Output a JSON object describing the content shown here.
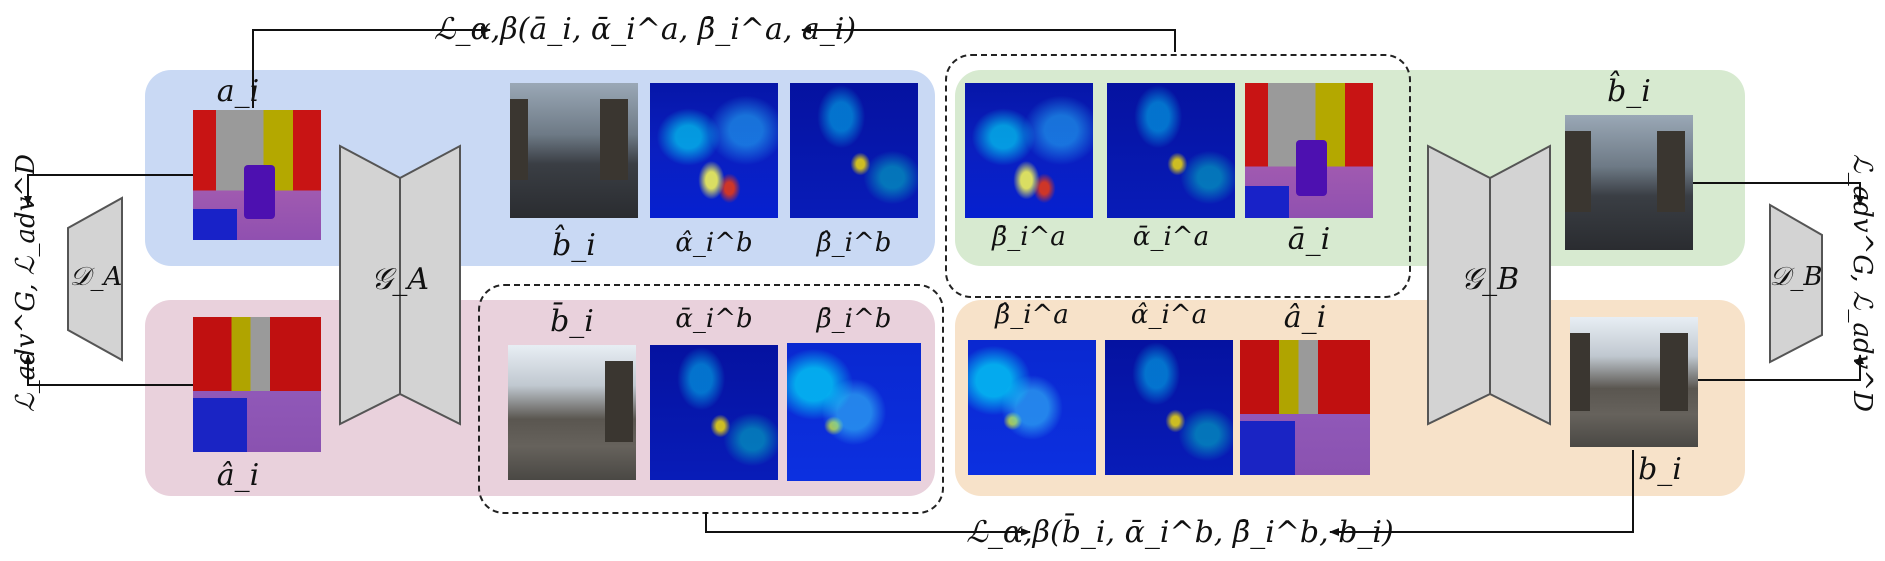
{
  "generators": {
    "ga": "𝒢_A",
    "gb": "𝒢_B"
  },
  "discriminators": {
    "da": "𝒟_A",
    "db": "𝒟_B"
  },
  "labels": {
    "a_i": "a_i",
    "a_hat_i": "â_i",
    "b_hat_i_top": "b̂_i",
    "alpha_hat_b": "α̂_i^b",
    "beta_hat_b": "β̂_i^b",
    "beta_bar_a": "β̄_i^a",
    "alpha_bar_a": "ᾱ_i^a",
    "a_bar_i": "ā_i",
    "b_hat_i_right": "b̂_i",
    "b_bar_i": "b̄_i",
    "alpha_bar_b": "ᾱ_i^b",
    "beta_bar_b": "β̄_i^b",
    "beta_hat_a": "β̂_i^a",
    "alpha_hat_a": "α̂_i^a",
    "a_hat_i_mid": "â_i",
    "b_i": "b_i"
  },
  "losses": {
    "top": "ℒ_α,β(ā_i, ᾱ_i^a, β̄_i^a, a_i)",
    "bottom": "ℒ_α,β(b̄_i, ᾱ_i^b, β̄_i^b, b_i)",
    "left": "ℒ_adv^G, ℒ_adv^D",
    "right": "ℒ_adv^G, ℒ_adv^D"
  },
  "colors": {
    "blue_region": "#c9d9f4",
    "pink_region": "#e9d1dc",
    "green_region": "#d7ead0",
    "orange_region": "#f7e2c9",
    "module_fill": "#d3d3d3",
    "module_stroke": "#555555"
  }
}
